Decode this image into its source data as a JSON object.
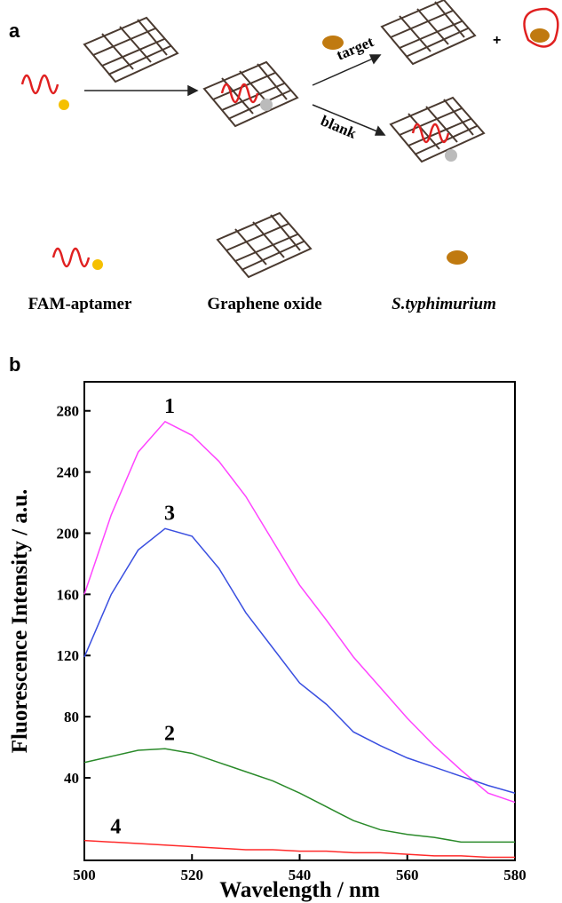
{
  "panel_a": {
    "label": "a",
    "arrow_labels": [
      "target",
      "blank"
    ],
    "plus": "+",
    "legend": [
      "FAM-aptamer",
      "Graphene oxide",
      "S.typhimurium"
    ]
  },
  "chart_data": {
    "type": "line",
    "panel_label": "b",
    "x_label": "Wavelength / nm",
    "y_label": "Fluorescence Intensity / a.u.",
    "x": [
      500,
      505,
      510,
      515,
      520,
      525,
      530,
      535,
      540,
      545,
      550,
      555,
      560,
      565,
      570,
      575,
      580
    ],
    "series": [
      {
        "name": "1",
        "color": "#ff44ff",
        "values": [
          160,
          212,
          253,
          273,
          264,
          247,
          224,
          195,
          166,
          143,
          119,
          99,
          79,
          61,
          45,
          30,
          24
        ]
      },
      {
        "name": "3",
        "color": "#3a4fe0",
        "values": [
          119,
          160,
          189,
          203,
          198,
          177,
          148,
          125,
          102,
          88,
          70,
          61,
          53,
          47,
          41,
          35,
          30
        ]
      },
      {
        "name": "2",
        "color": "#2a8a2a",
        "values": [
          50,
          54,
          58,
          59,
          56,
          50,
          44,
          38,
          30,
          21,
          12,
          6,
          3,
          1,
          -2,
          -2,
          -2
        ]
      },
      {
        "name": "4",
        "color": "#ff2a2a",
        "values": [
          -1,
          -2,
          -3,
          -4,
          -5,
          -6,
          -7,
          -7,
          -8,
          -8,
          -9,
          -9,
          -10,
          -11,
          -11,
          -12,
          -12
        ]
      }
    ],
    "label_at": [
      3,
      3,
      3,
      1
    ],
    "xlim": [
      500,
      580
    ],
    "xticks": [
      500,
      520,
      540,
      560,
      580
    ],
    "ylim": [
      -14,
      299
    ],
    "yticks": [
      40,
      80,
      120,
      160,
      200,
      240,
      280
    ]
  }
}
